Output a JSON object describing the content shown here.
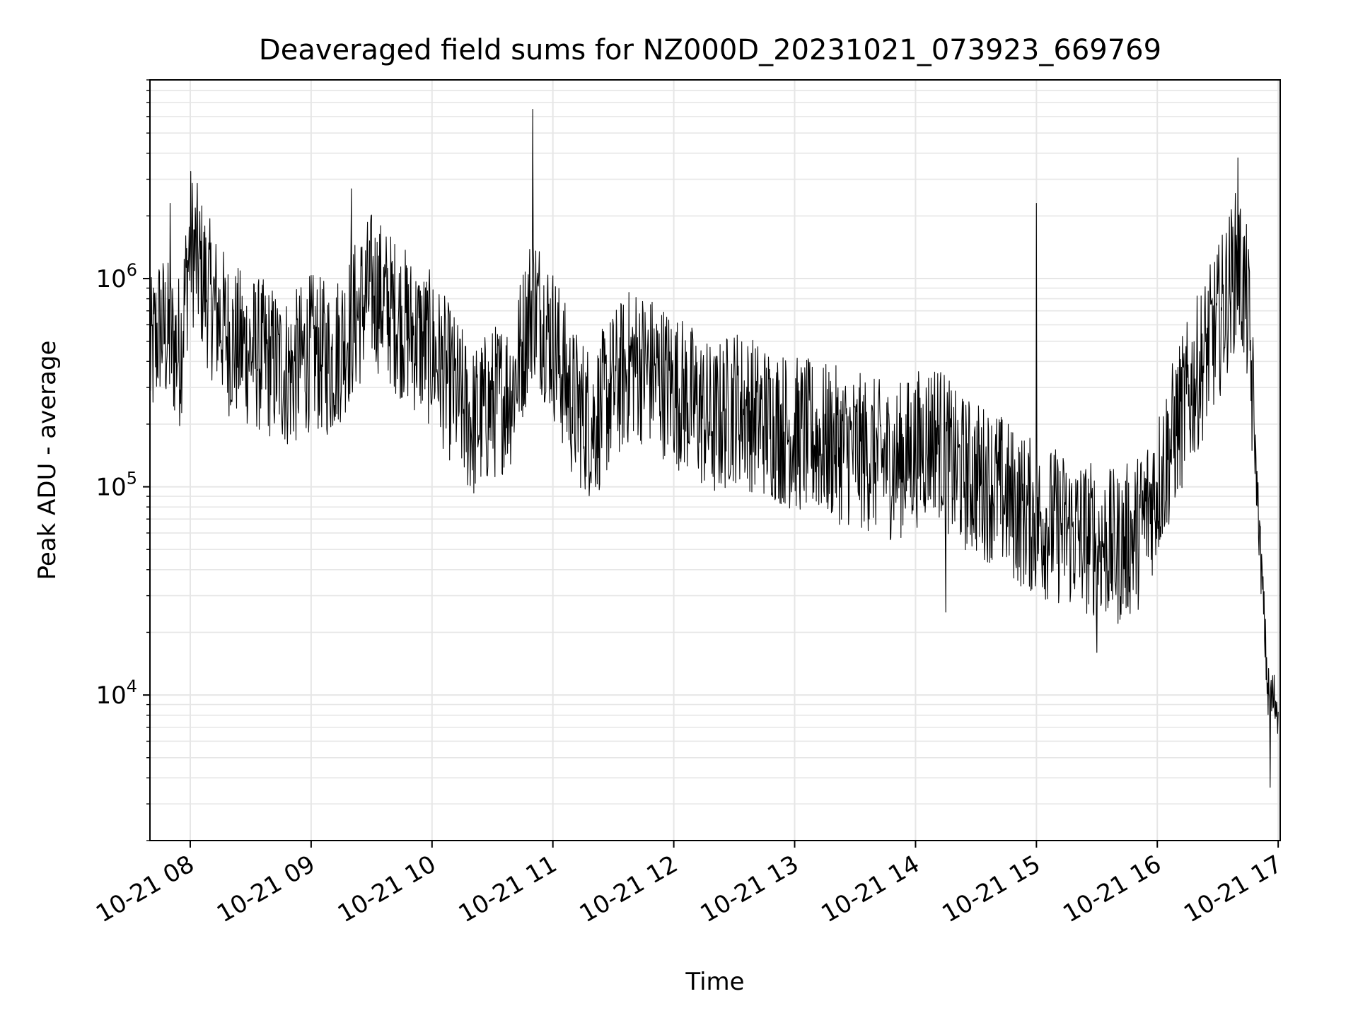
{
  "chart_data": {
    "type": "line",
    "title": "Deaveraged field sums for NZ000D_20231021_073923_669769",
    "xlabel": "Time",
    "ylabel": "Peak ADU - average",
    "yscale": "log",
    "ylim": [
      2000,
      9000000
    ],
    "xlim": [
      "2023-10-21 07:40",
      "2023-10-21 17:01"
    ],
    "grid": true,
    "line_color": "#000000",
    "grid_color": "#e6e6e6",
    "x_ticks": [
      {
        "value": "2023-10-21 08:00",
        "label": "10-21 08"
      },
      {
        "value": "2023-10-21 09:00",
        "label": "10-21 09"
      },
      {
        "value": "2023-10-21 10:00",
        "label": "10-21 10"
      },
      {
        "value": "2023-10-21 11:00",
        "label": "10-21 11"
      },
      {
        "value": "2023-10-21 12:00",
        "label": "10-21 12"
      },
      {
        "value": "2023-10-21 13:00",
        "label": "10-21 13"
      },
      {
        "value": "2023-10-21 14:00",
        "label": "10-21 14"
      },
      {
        "value": "2023-10-21 15:00",
        "label": "10-21 15"
      },
      {
        "value": "2023-10-21 16:00",
        "label": "10-21 16"
      },
      {
        "value": "2023-10-21 17:00",
        "label": "10-21 17"
      }
    ],
    "y_ticks": [
      {
        "value": 10000,
        "base": "10",
        "exp": "4"
      },
      {
        "value": 100000,
        "base": "10",
        "exp": "5"
      },
      {
        "value": 1000000,
        "base": "10",
        "exp": "6"
      }
    ],
    "series": [
      {
        "x": [
          "2023-10-21 07:40",
          "2023-10-21 07:45",
          "2023-10-21 07:50",
          "2023-10-21 07:55",
          "2023-10-21 08:00",
          "2023-10-21 08:10",
          "2023-10-21 08:20",
          "2023-10-21 08:30",
          "2023-10-21 08:40",
          "2023-10-21 08:50",
          "2023-10-21 09:00",
          "2023-10-21 09:10",
          "2023-10-21 09:20",
          "2023-10-21 09:30",
          "2023-10-21 09:40",
          "2023-10-21 09:50",
          "2023-10-21 10:00",
          "2023-10-21 10:10",
          "2023-10-21 10:20",
          "2023-10-21 10:30",
          "2023-10-21 10:40",
          "2023-10-21 10:50",
          "2023-10-21 11:00",
          "2023-10-21 11:10",
          "2023-10-21 11:20",
          "2023-10-21 11:30",
          "2023-10-21 11:40",
          "2023-10-21 11:50",
          "2023-10-21 12:00",
          "2023-10-21 12:10",
          "2023-10-21 12:20",
          "2023-10-21 12:30",
          "2023-10-21 12:40",
          "2023-10-21 12:50",
          "2023-10-21 13:00",
          "2023-10-21 13:10",
          "2023-10-21 13:20",
          "2023-10-21 13:30",
          "2023-10-21 13:40",
          "2023-10-21 13:50",
          "2023-10-21 14:00",
          "2023-10-21 14:10",
          "2023-10-21 14:20",
          "2023-10-21 14:30",
          "2023-10-21 14:40",
          "2023-10-21 14:50",
          "2023-10-21 15:00",
          "2023-10-21 15:10",
          "2023-10-21 15:20",
          "2023-10-21 15:30",
          "2023-10-21 15:40",
          "2023-10-21 15:50",
          "2023-10-21 16:00",
          "2023-10-21 16:10",
          "2023-10-21 16:20",
          "2023-10-21 16:30",
          "2023-10-21 16:40",
          "2023-10-21 16:45",
          "2023-10-21 16:50",
          "2023-10-21 16:55",
          "2023-10-21 17:00"
        ],
        "values": [
          400000,
          600000,
          500000,
          450000,
          1500000,
          800000,
          500000,
          450000,
          400000,
          350000,
          450000,
          400000,
          600000,
          900000,
          700000,
          550000,
          450000,
          300000,
          200000,
          250000,
          300000,
          800000,
          500000,
          250000,
          200000,
          300000,
          400000,
          350000,
          300000,
          250000,
          200000,
          250000,
          220000,
          200000,
          180000,
          170000,
          160000,
          150000,
          140000,
          130000,
          150000,
          180000,
          120000,
          110000,
          100000,
          80000,
          70000,
          65000,
          60000,
          55000,
          50000,
          60000,
          100000,
          200000,
          350000,
          600000,
          1200000,
          700000,
          80000,
          10000,
          9000
        ],
        "peaks": [
          {
            "x": "2023-10-21 10:50",
            "value": 6500000
          },
          {
            "x": "2023-10-21 09:20",
            "value": 2700000
          },
          {
            "x": "2023-10-21 16:40",
            "value": 3800000
          },
          {
            "x": "2023-10-21 07:50",
            "value": 2300000
          },
          {
            "x": "2023-10-21 15:00",
            "value": 2300000
          }
        ],
        "troughs": [
          {
            "x": "2023-10-21 14:15",
            "value": 25000
          },
          {
            "x": "2023-10-21 15:30",
            "value": 16000
          },
          {
            "x": "2023-10-21 16:56",
            "value": 3600
          }
        ]
      }
    ]
  }
}
